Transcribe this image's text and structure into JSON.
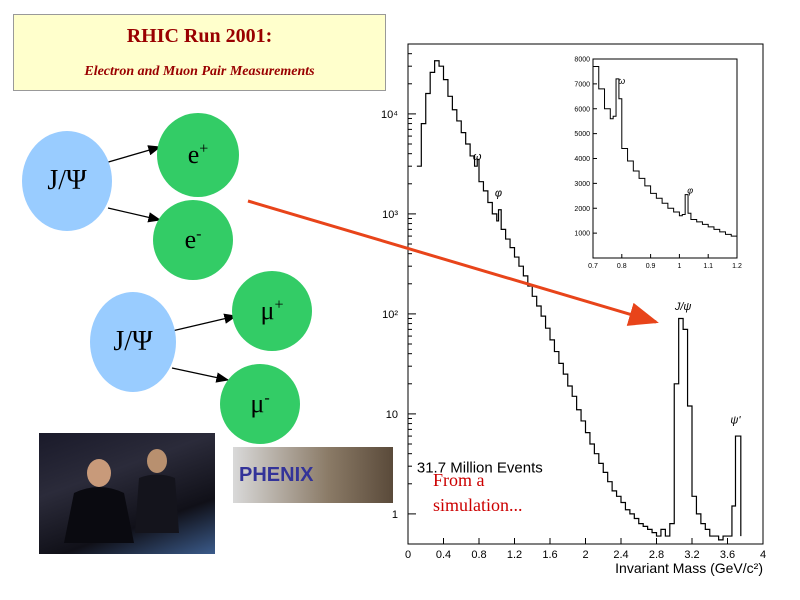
{
  "slide": {
    "title": "RHIC Run 2001:",
    "subtitle": "Electron and Muon Pair Measurements",
    "note_line1": "From a",
    "note_line2": "simulation...",
    "logo_text": "PHENIX"
  },
  "diagram": {
    "parent_label": "J/Ψ",
    "electron_plus": "e",
    "electron_plus_sup": "+",
    "electron_minus": "e",
    "electron_minus_sup": "-",
    "muon_plus": "μ",
    "muon_plus_sup": "+",
    "muon_minus": "μ",
    "muon_minus_sup": "-"
  },
  "colors": {
    "arrow": "#e8441a",
    "title_text": "#990000",
    "note_text": "#cc0000",
    "parent_fill": "#99ccff",
    "child_fill": "#33cc66"
  },
  "chart_data": [
    {
      "type": "line",
      "xlabel": "Invariant Mass (GeV/c²)",
      "ylabel": "",
      "annotation": "31.7 Million Events",
      "xlim": [
        0,
        4
      ],
      "ylim": [
        0.5,
        50000
      ],
      "yscale": "log",
      "x_ticks": [
        "0",
        "0.4",
        "0.8",
        "1.2",
        "1.6",
        "2",
        "2.4",
        "2.8",
        "3.2",
        "3.6",
        "4"
      ],
      "y_ticks": [
        "1",
        "10",
        "10²",
        "10³",
        "10⁴"
      ],
      "peak_labels": [
        {
          "text": "ω",
          "x": 0.78,
          "y": 3000
        },
        {
          "text": "φ",
          "x": 1.02,
          "y": 1300
        },
        {
          "text": "J/ψ",
          "x": 3.1,
          "y": 95
        },
        {
          "text": "ψ'",
          "x": 3.69,
          "y": 7
        }
      ],
      "series": [
        {
          "x": [
            0.1,
            0.15,
            0.2,
            0.25,
            0.3,
            0.35,
            0.4,
            0.45,
            0.5,
            0.55,
            0.6,
            0.65,
            0.7,
            0.75,
            0.78,
            0.8,
            0.85,
            0.9,
            0.95,
            1.0,
            1.02,
            1.05,
            1.1,
            1.15,
            1.2,
            1.25,
            1.3,
            1.35,
            1.4,
            1.45,
            1.5,
            1.55,
            1.6,
            1.65,
            1.7,
            1.75,
            1.8,
            1.85,
            1.9,
            1.95,
            2.0,
            2.05,
            2.1,
            2.15,
            2.2,
            2.25,
            2.3,
            2.35,
            2.4,
            2.45,
            2.5,
            2.55,
            2.6,
            2.65,
            2.7,
            2.75,
            2.8,
            2.85,
            2.9,
            2.95,
            3.0,
            3.05,
            3.1,
            3.15,
            3.2,
            3.25,
            3.3,
            3.35,
            3.4,
            3.45,
            3.5,
            3.55,
            3.6,
            3.65,
            3.69,
            3.75
          ],
          "y": [
            3000,
            8000,
            16000,
            26000,
            34000,
            30000,
            22000,
            15000,
            11000,
            8500,
            6500,
            5000,
            3800,
            3000,
            3500,
            2100,
            1700,
            1300,
            1000,
            850,
            1100,
            700,
            560,
            460,
            370,
            300,
            240,
            190,
            150,
            120,
            95,
            72,
            55,
            42,
            32,
            25,
            19,
            15,
            11,
            8.5,
            6.5,
            5,
            4,
            3.2,
            2.6,
            2.1,
            1.7,
            1.5,
            1.3,
            1.1,
            1.0,
            0.9,
            0.8,
            0.75,
            0.7,
            0.65,
            0.6,
            0.7,
            0.6,
            0.8,
            20,
            90,
            70,
            12,
            1.5,
            1.0,
            0.8,
            0.7,
            0.6,
            0.6,
            0.55,
            0.6,
            0.6,
            1.2,
            6,
            0.6
          ]
        }
      ]
    },
    {
      "type": "line",
      "xlim": [
        0.7,
        1.2
      ],
      "ylim": [
        0,
        8000
      ],
      "x_ticks": [
        "0.7",
        "0.8",
        "0.9",
        "1",
        "1.1",
        "1.2"
      ],
      "y_ticks": [
        "1000",
        "2000",
        "3000",
        "4000",
        "5000",
        "6000",
        "7000",
        "8000"
      ],
      "peak_labels": [
        {
          "text": "ω",
          "x": 0.782,
          "y": 7000
        },
        {
          "text": "φ",
          "x": 1.02,
          "y": 2600
        }
      ],
      "series": [
        {
          "x": [
            0.7,
            0.72,
            0.74,
            0.76,
            0.77,
            0.78,
            0.79,
            0.8,
            0.82,
            0.84,
            0.86,
            0.88,
            0.9,
            0.92,
            0.94,
            0.96,
            0.98,
            1.0,
            1.01,
            1.02,
            1.03,
            1.04,
            1.06,
            1.08,
            1.1,
            1.12,
            1.14,
            1.16,
            1.18,
            1.2
          ],
          "y": [
            7700,
            6800,
            6000,
            5600,
            5700,
            7200,
            6400,
            4400,
            3900,
            3500,
            3200,
            2900,
            2600,
            2400,
            2200,
            2000,
            1850,
            1700,
            1750,
            2550,
            1800,
            1550,
            1450,
            1350,
            1250,
            1150,
            1050,
            950,
            880,
            820
          ]
        }
      ]
    }
  ]
}
